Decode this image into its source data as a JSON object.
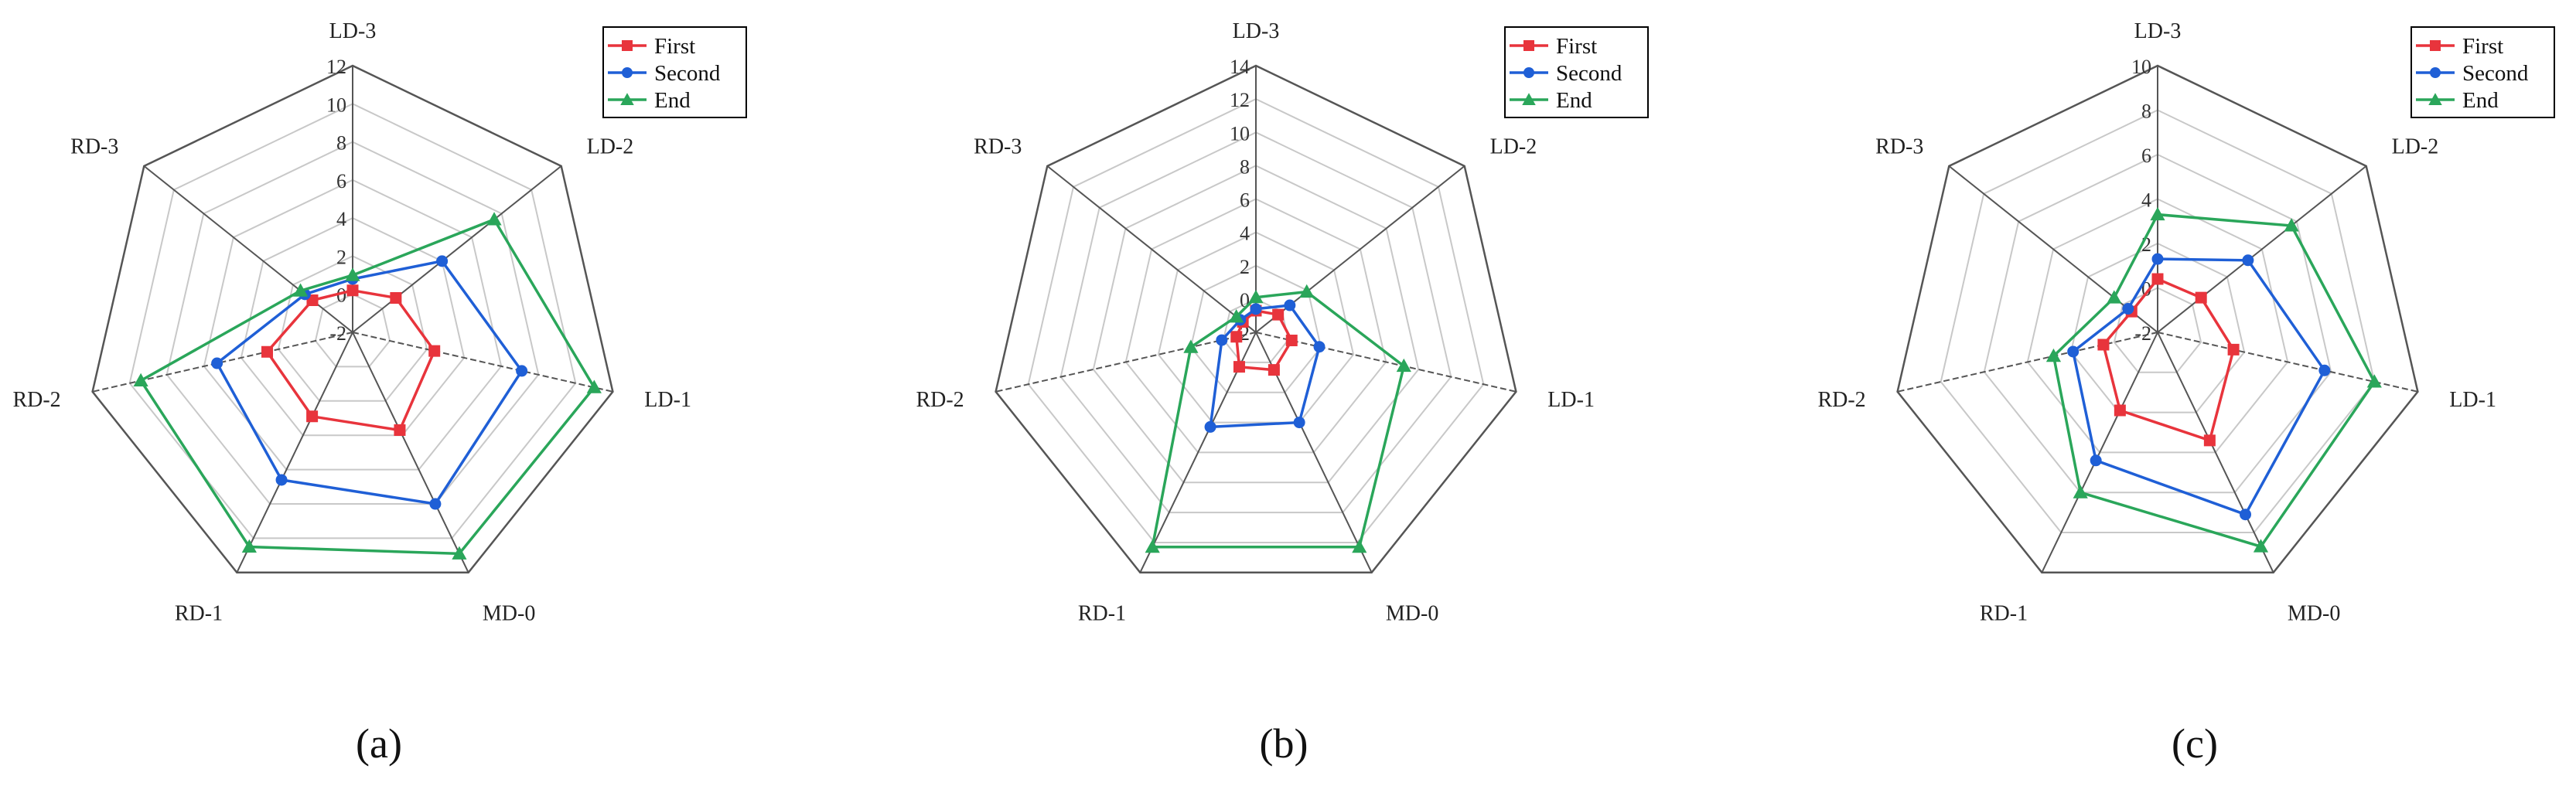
{
  "chart_data": [
    {
      "type": "radar",
      "panel_label": "(a)",
      "categories": [
        "LD-3",
        "LD-2",
        "LD-1",
        "MD-0",
        "RD-1",
        "RD-2",
        "RD-3"
      ],
      "rlim": [
        -2,
        12
      ],
      "rticks": [
        -2,
        0,
        2,
        4,
        6,
        8,
        10,
        12
      ],
      "grid": true,
      "legend_position": "top-right",
      "series": [
        {
          "name": "First",
          "color": "#e8343c",
          "marker": "square",
          "values": [
            0.2,
            0.9,
            2.4,
            3.7,
            2.9,
            2.6,
            0.7
          ]
        },
        {
          "name": "Second",
          "color": "#1f5fd6",
          "marker": "circle",
          "values": [
            0.8,
            4.0,
            7.1,
            8.0,
            6.6,
            5.3,
            1.2
          ]
        },
        {
          "name": "End",
          "color": "#2aa65a",
          "marker": "triangle",
          "values": [
            1.0,
            7.5,
            11.0,
            10.9,
            10.5,
            9.4,
            1.5
          ]
        }
      ]
    },
    {
      "type": "radar",
      "panel_label": "(b)",
      "categories": [
        "LD-3",
        "LD-2",
        "LD-1",
        "MD-0",
        "RD-1",
        "RD-2",
        "RD-3"
      ],
      "rlim": [
        -2,
        14
      ],
      "rticks": [
        -2,
        0,
        2,
        4,
        6,
        8,
        10,
        12,
        14
      ],
      "grid": true,
      "legend_position": "top-right",
      "series": [
        {
          "name": "First",
          "color": "#e8343c",
          "marker": "square",
          "values": [
            -0.7,
            -0.3,
            0.2,
            0.5,
            0.3,
            -0.8,
            -1.0
          ]
        },
        {
          "name": "Second",
          "color": "#1f5fd6",
          "marker": "circle",
          "values": [
            -0.6,
            0.6,
            1.9,
            4.0,
            4.3,
            0.1,
            -0.8
          ]
        },
        {
          "name": "End",
          "color": "#2aa65a",
          "marker": "triangle",
          "values": [
            0.1,
            1.9,
            7.1,
            12.3,
            12.3,
            2.0,
            -0.5
          ]
        }
      ]
    },
    {
      "type": "radar",
      "panel_label": "(c)",
      "categories": [
        "LD-3",
        "LD-2",
        "LD-1",
        "MD-0",
        "RD-1",
        "RD-2",
        "RD-3"
      ],
      "rlim": [
        -2,
        10
      ],
      "rticks": [
        -2,
        0,
        2,
        4,
        6,
        8,
        10
      ],
      "grid": true,
      "legend_position": "top-right",
      "series": [
        {
          "name": "First",
          "color": "#e8343c",
          "marker": "square",
          "values": [
            0.4,
            0.5,
            1.5,
            3.4,
            1.9,
            0.5,
            -0.5
          ]
        },
        {
          "name": "Second",
          "color": "#1f5fd6",
          "marker": "circle",
          "values": [
            1.3,
            3.2,
            5.7,
            7.1,
            4.4,
            1.9,
            -0.3
          ]
        },
        {
          "name": "End",
          "color": "#2aa65a",
          "marker": "triangle",
          "values": [
            3.3,
            5.7,
            8.0,
            8.7,
            6.0,
            2.8,
            0.5
          ]
        }
      ]
    }
  ]
}
